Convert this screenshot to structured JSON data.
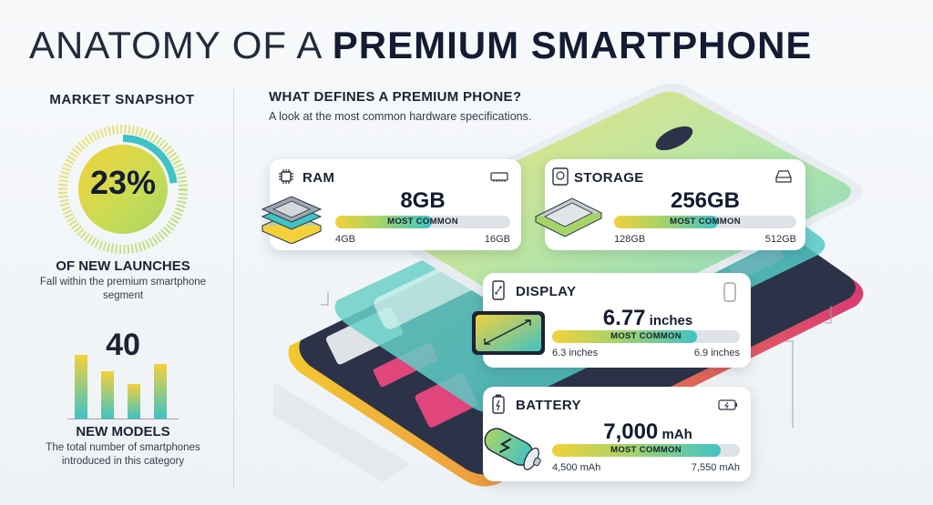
{
  "title": {
    "light": "ANATOMY OF A ",
    "bold": "PREMIUM SMARTPHONE"
  },
  "snapshot": {
    "heading": "MARKET SNAPSHOT",
    "percent_label": "23%",
    "percent_value": 23,
    "subheading": "OF NEW LAUNCHES",
    "description": "Fall within the premium smartphone segment"
  },
  "models": {
    "count": "40",
    "label": "NEW MODELS",
    "description": "The total number of smartphones introduced in this category"
  },
  "specs_section": {
    "heading": "WHAT DEFINES A PREMIUM PHONE?",
    "subheading": "A look at the most common hardware specifications."
  },
  "cards": {
    "ram": {
      "title": "RAM",
      "value": "8GB",
      "unit": "",
      "bar_label": "MOST COMMON",
      "min": "4GB",
      "max": "16GB",
      "fill_fraction": 0.55
    },
    "storage": {
      "title": "STORAGE",
      "value": "256GB",
      "unit": "",
      "bar_label": "MOST COMMON",
      "min": "128GB",
      "max": "512GB",
      "fill_fraction": 0.57
    },
    "display": {
      "title": "DISPLAY",
      "value": "6.77",
      "unit": " inches",
      "bar_label": "MOST COMMON",
      "min": "6.3 inches",
      "max": "6.9 inches",
      "fill_fraction": 0.77
    },
    "battery": {
      "title": "BATTERY",
      "value": "7,000",
      "unit": " mAh",
      "bar_label": "MOST COMMON",
      "min": "4,500 mAh",
      "max": "7,550 mAh",
      "fill_fraction": 0.9
    }
  },
  "colors": {
    "navy": "#141c33",
    "yellow": "#f2d13a",
    "green": "#a6d468",
    "teal": "#3fc3c4",
    "pink": "#e0457b",
    "track": "#dfe3e8"
  }
}
